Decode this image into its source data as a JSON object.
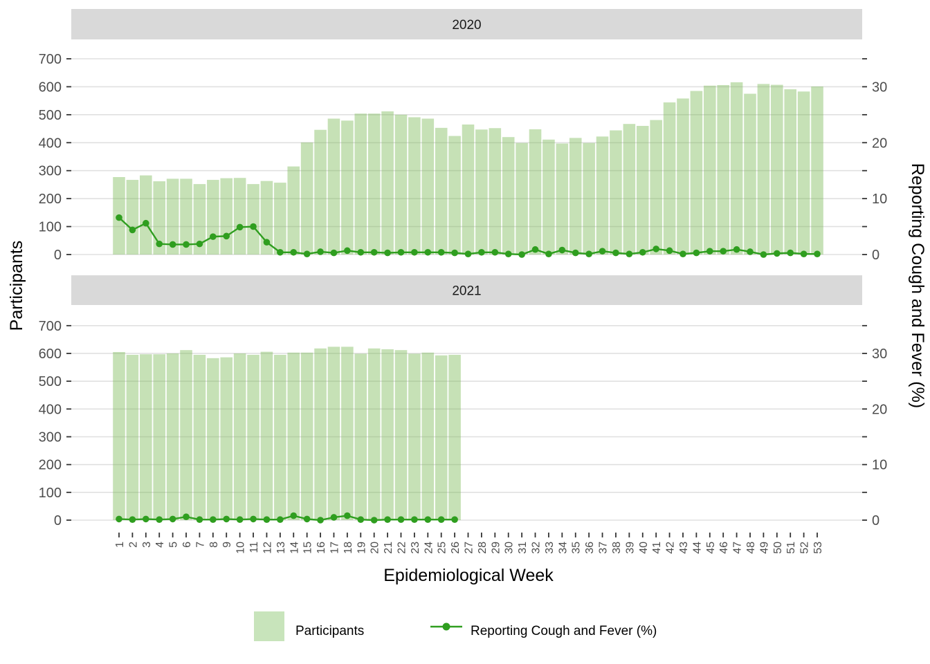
{
  "figure": {
    "x_axis_title": "Epidemiological Week",
    "y_left_title": "Participants",
    "y_right_title": "Reporting Cough and Fever (%)",
    "legend_bar_label": "Participants",
    "legend_line_label": "Reporting Cough and Fever (%)"
  },
  "colors": {
    "bar_fill_rgba": "rgba(118,184,82,0.42)",
    "bar_fill_solid": "#c8e4bb",
    "line": "#2f9e1f",
    "strip_bg": "#d9d9d9",
    "gridline": "#e0e0e0",
    "tick": "#333333",
    "axis_text": "#4d4d4d",
    "title_text": "#000000"
  },
  "chart_data": {
    "type": "bar+line dual-axis, faceted by year",
    "title": "",
    "x_axis": {
      "title": "Epidemiological Week",
      "tick_labels": [
        1,
        2,
        3,
        4,
        5,
        6,
        7,
        8,
        9,
        10,
        11,
        12,
        13,
        14,
        15,
        16,
        17,
        18,
        19,
        20,
        21,
        22,
        23,
        24,
        25,
        26,
        27,
        28,
        29,
        30,
        31,
        32,
        33,
        34,
        35,
        36,
        37,
        38,
        39,
        40,
        41,
        42,
        43,
        44,
        45,
        46,
        47,
        48,
        49,
        50,
        51,
        52,
        53
      ]
    },
    "y_left": {
      "title": "Participants",
      "range": [
        0,
        700
      ],
      "tick_labels": [
        0,
        100,
        200,
        300,
        400,
        500,
        600,
        700
      ],
      "grid": "horizontal major gridlines only"
    },
    "y_right": {
      "title": "Reporting Cough and Fever (%)",
      "range": [
        0,
        35
      ],
      "labeled_ticks": [
        0,
        10,
        20,
        30
      ],
      "minor_tick_step": 5,
      "scale_note": "20 participants on left axis = 1% on right axis"
    },
    "legend": {
      "position": "bottom",
      "entries": [
        {
          "label": "Participants",
          "symbol": "filled-square"
        },
        {
          "label": "Reporting Cough and Fever (%)",
          "symbol": "line-with-point"
        }
      ]
    },
    "facets": [
      {
        "label": "2020",
        "n_weeks": 53,
        "participants": [
          277,
          267,
          283,
          262,
          271,
          271,
          252,
          267,
          273,
          274,
          252,
          263,
          257,
          315,
          401,
          446,
          486,
          479,
          504,
          504,
          512,
          500,
          491,
          486,
          453,
          424,
          465,
          447,
          452,
          420,
          399,
          448,
          411,
          397,
          417,
          399,
          422,
          444,
          467,
          460,
          481,
          544,
          558,
          585,
          604,
          606,
          616,
          575,
          610,
          607,
          591,
          583,
          601
        ],
        "cough_fever_pct": [
          6.6,
          4.4,
          5.6,
          1.9,
          1.8,
          1.8,
          1.9,
          3.2,
          3.3,
          4.9,
          5.0,
          2.2,
          0.4,
          0.4,
          0.1,
          0.5,
          0.3,
          0.7,
          0.4,
          0.4,
          0.3,
          0.4,
          0.4,
          0.4,
          0.4,
          0.3,
          0.1,
          0.4,
          0.4,
          0.1,
          0.0,
          0.9,
          0.1,
          0.8,
          0.3,
          0.1,
          0.6,
          0.3,
          0.1,
          0.4,
          1.0,
          0.7,
          0.1,
          0.3,
          0.6,
          0.6,
          0.9,
          0.5,
          0.0,
          0.2,
          0.3,
          0.1,
          0.1
        ]
      },
      {
        "label": "2021",
        "n_weeks": 26,
        "participants": [
          605,
          595,
          597,
          597,
          600,
          612,
          595,
          583,
          586,
          600,
          595,
          606,
          595,
          603,
          603,
          618,
          624,
          624,
          599,
          618,
          615,
          612,
          599,
          603,
          593,
          595
        ],
        "cough_fever_pct": [
          0.2,
          0.1,
          0.2,
          0.1,
          0.2,
          0.6,
          0.1,
          0.1,
          0.2,
          0.1,
          0.2,
          0.1,
          0.1,
          0.8,
          0.2,
          0.0,
          0.5,
          0.8,
          0.1,
          0.0,
          0.1,
          0.1,
          0.1,
          0.1,
          0.1,
          0.1
        ]
      }
    ]
  }
}
